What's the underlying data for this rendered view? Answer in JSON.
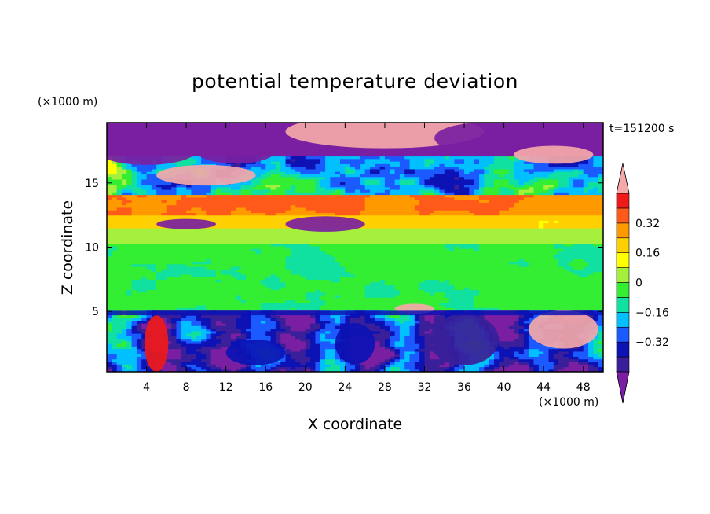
{
  "chart_data": {
    "type": "heatmap",
    "title": "potential temperature deviation",
    "xlabel": "X coordinate",
    "ylabel": "Z coordinate",
    "x_unit": "(×1000 m)",
    "y_unit": "(×1000 m)",
    "time_label": "t=151200 s",
    "xlim": [
      0,
      50
    ],
    "ylim": [
      0.3,
      19.7
    ],
    "x_ticks": [
      "4",
      "8",
      "12",
      "16",
      "20",
      "24",
      "28",
      "32",
      "36",
      "40",
      "44",
      "48"
    ],
    "y_ticks": [
      "5",
      "10",
      "15"
    ],
    "x_tick_values": [
      4,
      8,
      12,
      16,
      20,
      24,
      28,
      32,
      36,
      40,
      44,
      48
    ],
    "y_tick_values": [
      5,
      10,
      15
    ],
    "colorbar": {
      "levels": [
        -0.48,
        -0.4,
        -0.32,
        -0.24,
        -0.16,
        -0.08,
        0,
        0.08,
        0.16,
        0.24,
        0.32,
        0.4,
        0.48
      ],
      "labeled": [
        "0.32",
        "0.16",
        "0",
        "−0.16",
        "−0.32"
      ],
      "labeled_values": [
        0.32,
        0.16,
        0,
        -0.16,
        -0.32
      ],
      "extend": "both",
      "colors": [
        "#7a1fa2",
        "#3a1f9a",
        "#0c12b4",
        "#1a5aff",
        "#00c0ff",
        "#10e0a0",
        "#33ee33",
        "#a4f03c",
        "#ffff00",
        "#ffd000",
        "#ff9900",
        "#ff5a1a",
        "#ee1a1a",
        "#f4a8a8"
      ]
    },
    "layers": [
      {
        "z_range": [
          17,
          19.7
        ],
        "description_value": "mixed strongly negative and positive"
      },
      {
        "z_range": [
          14,
          17
        ],
        "description_value": "mixed, positive band"
      },
      {
        "z_range": [
          12.5,
          14
        ],
        "description_value": 0.35
      },
      {
        "z_range": [
          11.5,
          12.5
        ],
        "description_value": 0.2
      },
      {
        "z_range": [
          5,
          11.5
        ],
        "description_value": 0.02
      },
      {
        "z_range": [
          0.3,
          5
        ],
        "description_value": "turbulent mixed"
      }
    ]
  }
}
